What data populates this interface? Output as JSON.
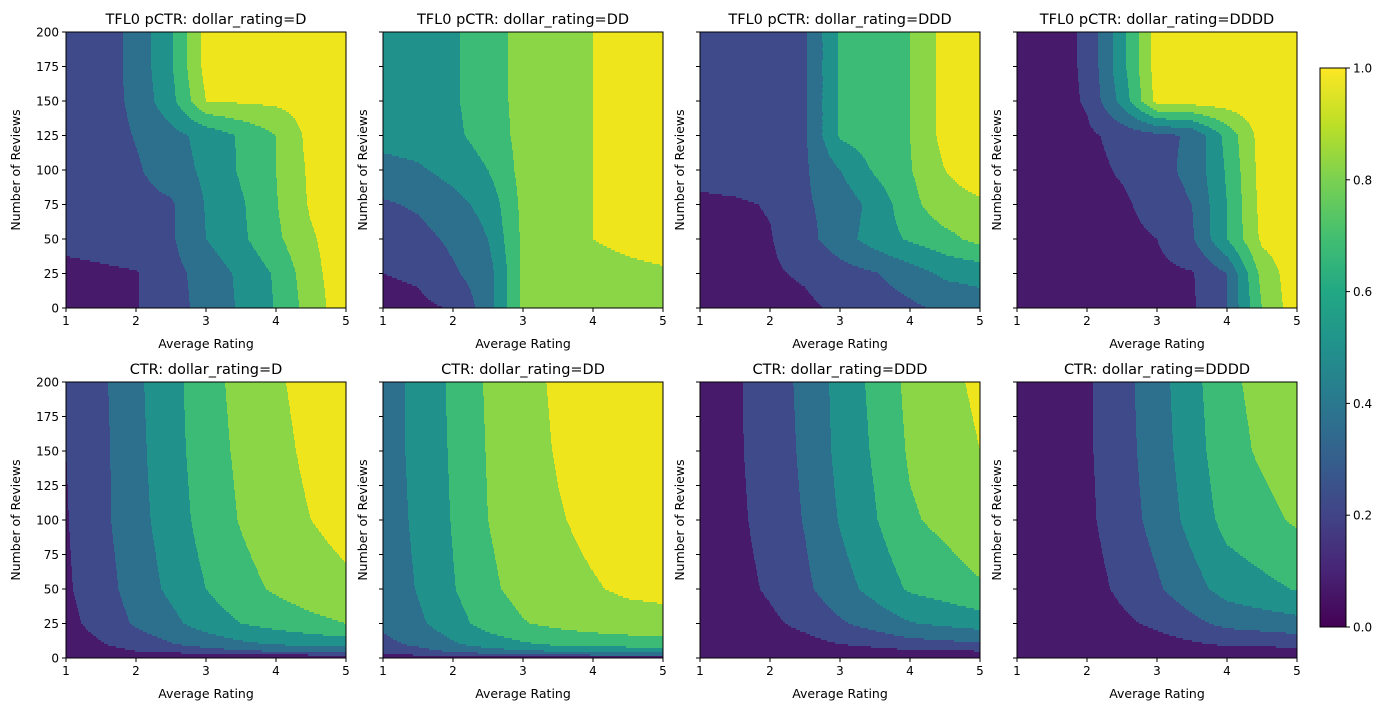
{
  "contour_levels": [
    0,
    0.15,
    0.3,
    0.45,
    0.6,
    0.75,
    0.9,
    1.05
  ],
  "level_colors": [
    "#481a6c",
    "#3e4a89",
    "#2d708e",
    "#21918c",
    "#3bbb75",
    "#8bd646",
    "#efe51c"
  ],
  "colorbar": {
    "range": [
      0,
      1
    ],
    "ticks": [
      "0.0",
      "0.2",
      "0.4",
      "0.6",
      "0.8",
      "1.0"
    ],
    "colormap": "viridis"
  },
  "chart_data": [
    {
      "type": "heatmap",
      "title": "TFL0 pCTR: dollar_rating=D",
      "xlabel": "Average Rating",
      "ylabel": "Number of Reviews",
      "xlim": [
        1,
        5
      ],
      "ylim": [
        0,
        200
      ],
      "xticks": [
        1,
        2,
        3,
        4,
        5
      ],
      "yticks": [
        0,
        25,
        50,
        75,
        100,
        125,
        150,
        175,
        200
      ],
      "show_ytick_labels": true,
      "x": [
        1,
        1.5,
        2,
        2.5,
        3,
        3.5,
        4,
        4.5,
        5
      ],
      "y": [
        0,
        25,
        50,
        75,
        100,
        125,
        150,
        175,
        200
      ],
      "z": [
        [
          0.1,
          0.12,
          0.14,
          0.24,
          0.35,
          0.47,
          0.61,
          0.82,
          1.0
        ],
        [
          0.1,
          0.12,
          0.14,
          0.25,
          0.36,
          0.48,
          0.62,
          0.85,
          1.0
        ],
        [
          0.2,
          0.22,
          0.25,
          0.28,
          0.45,
          0.57,
          0.72,
          0.88,
          1.0
        ],
        [
          0.2,
          0.22,
          0.25,
          0.28,
          0.46,
          0.58,
          0.74,
          0.92,
          1.0
        ],
        [
          0.2,
          0.22,
          0.28,
          0.38,
          0.48,
          0.62,
          0.75,
          0.93,
          1.0
        ],
        [
          0.2,
          0.22,
          0.31,
          0.4,
          0.5,
          0.62,
          0.75,
          0.95,
          1.0
        ],
        [
          0.2,
          0.22,
          0.34,
          0.55,
          0.9,
          0.92,
          0.93,
          0.96,
          1.0
        ],
        [
          0.2,
          0.22,
          0.35,
          0.58,
          0.95,
          0.97,
          0.98,
          0.99,
          1.0
        ],
        [
          0.2,
          0.22,
          0.35,
          0.58,
          0.95,
          0.97,
          0.98,
          0.99,
          1.0
        ]
      ]
    },
    {
      "type": "heatmap",
      "title": "TFL0 pCTR: dollar_rating=DD",
      "xlabel": "Average Rating",
      "ylabel": "Number of Reviews",
      "xlim": [
        1,
        5
      ],
      "ylim": [
        0,
        200
      ],
      "xticks": [
        1,
        2,
        3,
        4,
        5
      ],
      "yticks": [
        0,
        25,
        50,
        75,
        100,
        125,
        150,
        175,
        200
      ],
      "show_ytick_labels": false,
      "x": [
        1,
        1.5,
        2,
        2.5,
        3,
        3.5,
        4,
        4.5,
        5
      ],
      "y": [
        0,
        25,
        50,
        75,
        100,
        125,
        150,
        175,
        200
      ],
      "z": [
        [
          0.1,
          0.12,
          0.16,
          0.38,
          0.78,
          0.8,
          0.83,
          0.85,
          0.87
        ],
        [
          0.15,
          0.17,
          0.28,
          0.38,
          0.78,
          0.8,
          0.84,
          0.86,
          0.88
        ],
        [
          0.22,
          0.25,
          0.33,
          0.45,
          0.78,
          0.82,
          0.9,
          0.94,
          0.97
        ],
        [
          0.28,
          0.32,
          0.4,
          0.5,
          0.79,
          0.83,
          0.9,
          0.95,
          0.97
        ],
        [
          0.4,
          0.43,
          0.5,
          0.6,
          0.8,
          0.83,
          0.9,
          0.95,
          0.97
        ],
        [
          0.5,
          0.52,
          0.57,
          0.66,
          0.8,
          0.83,
          0.9,
          0.95,
          0.97
        ],
        [
          0.5,
          0.52,
          0.58,
          0.68,
          0.8,
          0.83,
          0.9,
          0.95,
          0.97
        ],
        [
          0.5,
          0.52,
          0.58,
          0.68,
          0.8,
          0.83,
          0.9,
          0.95,
          0.97
        ],
        [
          0.5,
          0.52,
          0.58,
          0.68,
          0.8,
          0.83,
          0.9,
          0.95,
          0.97
        ]
      ]
    },
    {
      "type": "heatmap",
      "title": "TFL0 pCTR: dollar_rating=DDD",
      "xlabel": "Average Rating",
      "ylabel": "Number of Reviews",
      "xlim": [
        1,
        5
      ],
      "ylim": [
        0,
        200
      ],
      "xticks": [
        1,
        2,
        3,
        4,
        5
      ],
      "yticks": [
        0,
        25,
        50,
        75,
        100,
        125,
        150,
        175,
        200
      ],
      "show_ytick_labels": false,
      "x": [
        1,
        1.5,
        2,
        2.5,
        3,
        3.5,
        4,
        4.5,
        5
      ],
      "y": [
        0,
        25,
        50,
        75,
        100,
        125,
        150,
        175,
        200
      ],
      "z": [
        [
          0.08,
          0.09,
          0.1,
          0.12,
          0.18,
          0.22,
          0.27,
          0.33,
          0.38
        ],
        [
          0.1,
          0.11,
          0.13,
          0.17,
          0.24,
          0.29,
          0.38,
          0.48,
          0.5
        ],
        [
          0.1,
          0.11,
          0.14,
          0.25,
          0.38,
          0.52,
          0.62,
          0.7,
          0.8
        ],
        [
          0.12,
          0.13,
          0.16,
          0.28,
          0.36,
          0.5,
          0.7,
          0.85,
          0.88
        ],
        [
          0.2,
          0.22,
          0.24,
          0.28,
          0.45,
          0.62,
          0.74,
          0.9,
          0.97
        ],
        [
          0.2,
          0.22,
          0.25,
          0.28,
          0.62,
          0.68,
          0.75,
          0.95,
          1.0
        ],
        [
          0.2,
          0.22,
          0.25,
          0.28,
          0.62,
          0.68,
          0.75,
          0.95,
          1.0
        ],
        [
          0.2,
          0.22,
          0.25,
          0.28,
          0.62,
          0.68,
          0.75,
          0.95,
          1.0
        ],
        [
          0.2,
          0.22,
          0.25,
          0.28,
          0.62,
          0.68,
          0.75,
          0.95,
          1.0
        ]
      ]
    },
    {
      "type": "heatmap",
      "title": "TFL0 pCTR: dollar_rating=DDDD",
      "xlabel": "Average Rating",
      "ylabel": "Number of Reviews",
      "xlim": [
        1,
        5
      ],
      "ylim": [
        0,
        200
      ],
      "xticks": [
        1,
        2,
        3,
        4,
        5
      ],
      "yticks": [
        0,
        25,
        50,
        75,
        100,
        125,
        150,
        175,
        200
      ],
      "show_ytick_labels": false,
      "x": [
        1,
        1.5,
        2,
        2.5,
        3,
        3.5,
        4,
        4.5,
        5
      ],
      "y": [
        0,
        25,
        50,
        75,
        100,
        125,
        150,
        175,
        200
      ],
      "z": [
        [
          0.05,
          0.06,
          0.07,
          0.08,
          0.1,
          0.13,
          0.3,
          0.75,
          1.0
        ],
        [
          0.05,
          0.06,
          0.07,
          0.08,
          0.11,
          0.14,
          0.3,
          0.8,
          1.0
        ],
        [
          0.05,
          0.07,
          0.08,
          0.1,
          0.15,
          0.28,
          0.6,
          0.93,
          1.0
        ],
        [
          0.05,
          0.07,
          0.09,
          0.12,
          0.22,
          0.3,
          0.6,
          0.95,
          1.0
        ],
        [
          0.05,
          0.07,
          0.1,
          0.17,
          0.25,
          0.34,
          0.62,
          0.96,
          1.0
        ],
        [
          0.05,
          0.07,
          0.12,
          0.2,
          0.26,
          0.32,
          0.65,
          0.97,
          1.0
        ],
        [
          0.05,
          0.07,
          0.17,
          0.5,
          0.95,
          0.97,
          0.98,
          1.0,
          1.0
        ],
        [
          0.05,
          0.07,
          0.18,
          0.55,
          0.97,
          0.98,
          0.99,
          1.0,
          1.0
        ],
        [
          0.05,
          0.07,
          0.18,
          0.55,
          0.97,
          0.98,
          0.99,
          1.0,
          1.0
        ]
      ]
    },
    {
      "type": "heatmap",
      "title": "CTR: dollar_rating=D",
      "xlabel": "Average Rating",
      "ylabel": "Number of Reviews",
      "xlim": [
        1,
        5
      ],
      "ylim": [
        0,
        200
      ],
      "xticks": [
        1,
        2,
        3,
        4,
        5
      ],
      "yticks": [
        0,
        25,
        50,
        75,
        100,
        125,
        150,
        175,
        200
      ],
      "show_ytick_labels": true,
      "x": [
        1,
        1.5,
        2,
        2.5,
        3,
        3.5,
        4,
        4.5,
        5
      ],
      "y": [
        0,
        2,
        5,
        10,
        25,
        50,
        100,
        150,
        200
      ],
      "z": [
        [
          0,
          0,
          0,
          0,
          0,
          0,
          0,
          0,
          0
        ],
        [
          0.02,
          0.04,
          0.06,
          0.08,
          0.1,
          0.12,
          0.13,
          0.14,
          0.15
        ],
        [
          0.05,
          0.09,
          0.15,
          0.19,
          0.24,
          0.28,
          0.31,
          0.33,
          0.35
        ],
        [
          0.08,
          0.14,
          0.22,
          0.29,
          0.36,
          0.42,
          0.46,
          0.49,
          0.52
        ],
        [
          0.11,
          0.2,
          0.32,
          0.41,
          0.52,
          0.6,
          0.66,
          0.71,
          0.75
        ],
        [
          0.13,
          0.23,
          0.37,
          0.48,
          0.6,
          0.7,
          0.77,
          0.83,
          0.87
        ],
        [
          0.14,
          0.26,
          0.4,
          0.52,
          0.66,
          0.76,
          0.84,
          0.9,
          0.95
        ],
        [
          0.15,
          0.26,
          0.41,
          0.54,
          0.68,
          0.78,
          0.86,
          0.93,
          0.98
        ],
        [
          0.152,
          0.27,
          0.42,
          0.55,
          0.69,
          0.8,
          0.88,
          0.95,
          1.0
        ]
      ]
    },
    {
      "type": "heatmap",
      "title": "CTR: dollar_rating=DD",
      "xlabel": "Average Rating",
      "ylabel": "Number of Reviews",
      "xlim": [
        1,
        5
      ],
      "ylim": [
        0,
        200
      ],
      "xticks": [
        1,
        2,
        3,
        4,
        5
      ],
      "yticks": [
        0,
        25,
        50,
        75,
        100,
        125,
        150,
        175,
        200
      ],
      "show_ytick_labels": false,
      "x": [
        1,
        1.5,
        2,
        2.5,
        3,
        3.5,
        4,
        4.5,
        5
      ],
      "y": [
        0,
        2,
        5,
        10,
        25,
        50,
        100,
        150,
        200
      ],
      "z": [
        [
          0,
          0,
          0,
          0,
          0,
          0,
          0,
          0,
          0
        ],
        [
          0.11,
          0.15,
          0.19,
          0.23,
          0.26,
          0.28,
          0.29,
          0.3,
          0.3
        ],
        [
          0.19,
          0.25,
          0.32,
          0.39,
          0.43,
          0.46,
          0.48,
          0.5,
          0.5
        ],
        [
          0.26,
          0.33,
          0.43,
          0.52,
          0.58,
          0.63,
          0.65,
          0.67,
          0.68
        ],
        [
          0.33,
          0.42,
          0.54,
          0.66,
          0.74,
          0.79,
          0.83,
          0.85,
          0.86
        ],
        [
          0.35,
          0.46,
          0.59,
          0.72,
          0.8,
          0.86,
          0.89,
          0.92,
          0.93
        ],
        [
          0.37,
          0.48,
          0.61,
          0.75,
          0.83,
          0.89,
          0.93,
          0.96,
          0.97
        ],
        [
          0.38,
          0.49,
          0.62,
          0.76,
          0.85,
          0.91,
          0.95,
          0.98,
          0.99
        ],
        [
          0.38,
          0.49,
          0.63,
          0.77,
          0.86,
          0.92,
          0.96,
          0.99,
          1.0
        ]
      ]
    },
    {
      "type": "heatmap",
      "title": "CTR: dollar_rating=DDD",
      "xlabel": "Average Rating",
      "ylabel": "Number of Reviews",
      "xlim": [
        1,
        5
      ],
      "ylim": [
        0,
        200
      ],
      "xticks": [
        1,
        2,
        3,
        4,
        5
      ],
      "yticks": [
        0,
        25,
        50,
        75,
        100,
        125,
        150,
        175,
        200
      ],
      "show_ytick_labels": false,
      "x": [
        1,
        1.5,
        2,
        2.5,
        3,
        3.5,
        4,
        4.5,
        5
      ],
      "y": [
        0,
        2,
        5,
        10,
        25,
        50,
        100,
        150,
        200
      ],
      "z": [
        [
          0,
          0,
          0,
          0,
          0,
          0,
          0,
          0,
          0
        ],
        [
          0,
          0.01,
          0.01,
          0.02,
          0.03,
          0.04,
          0.05,
          0.05,
          0.06
        ],
        [
          0.01,
          0.02,
          0.04,
          0.05,
          0.08,
          0.1,
          0.13,
          0.14,
          0.15
        ],
        [
          0.02,
          0.04,
          0.07,
          0.1,
          0.15,
          0.19,
          0.24,
          0.26,
          0.28
        ],
        [
          0.03,
          0.07,
          0.12,
          0.19,
          0.28,
          0.36,
          0.44,
          0.48,
          0.52
        ],
        [
          0.04,
          0.1,
          0.17,
          0.27,
          0.39,
          0.5,
          0.62,
          0.67,
          0.73
        ],
        [
          0.05,
          0.12,
          0.2,
          0.31,
          0.46,
          0.59,
          0.73,
          0.79,
          0.86
        ],
        [
          0.05,
          0.13,
          0.21,
          0.33,
          0.49,
          0.62,
          0.77,
          0.83,
          0.9
        ],
        [
          0.05,
          0.13,
          0.22,
          0.34,
          0.5,
          0.64,
          0.79,
          0.86,
          0.93
        ]
      ]
    },
    {
      "type": "heatmap",
      "title": "CTR: dollar_rating=DDDD",
      "xlabel": "Average Rating",
      "ylabel": "Number of Reviews",
      "xlim": [
        1,
        5
      ],
      "ylim": [
        0,
        200
      ],
      "xticks": [
        1,
        2,
        3,
        4,
        5
      ],
      "yticks": [
        0,
        25,
        50,
        75,
        100,
        125,
        150,
        175,
        200
      ],
      "show_ytick_labels": false,
      "x": [
        1,
        1.5,
        2,
        2.5,
        3,
        3.5,
        4,
        4.5,
        5
      ],
      "y": [
        0,
        2,
        5,
        10,
        25,
        50,
        100,
        150,
        200
      ],
      "z": [
        [
          0,
          0,
          0,
          0,
          0,
          0,
          0,
          0,
          0
        ],
        [
          0,
          0,
          0.01,
          0.01,
          0.02,
          0.03,
          0.04,
          0.04,
          0.04
        ],
        [
          0,
          0.01,
          0.02,
          0.03,
          0.05,
          0.07,
          0.09,
          0.09,
          0.1
        ],
        [
          0.01,
          0.02,
          0.03,
          0.06,
          0.09,
          0.13,
          0.17,
          0.18,
          0.2
        ],
        [
          0.01,
          0.04,
          0.06,
          0.12,
          0.18,
          0.26,
          0.34,
          0.37,
          0.4
        ],
        [
          0.02,
          0.06,
          0.09,
          0.18,
          0.28,
          0.39,
          0.51,
          0.56,
          0.61
        ],
        [
          0.03,
          0.07,
          0.12,
          0.23,
          0.35,
          0.5,
          0.65,
          0.71,
          0.77
        ],
        [
          0.03,
          0.08,
          0.13,
          0.24,
          0.38,
          0.53,
          0.7,
          0.77,
          0.83
        ],
        [
          0.03,
          0.08,
          0.13,
          0.25,
          0.39,
          0.55,
          0.72,
          0.79,
          0.86
        ]
      ]
    }
  ]
}
